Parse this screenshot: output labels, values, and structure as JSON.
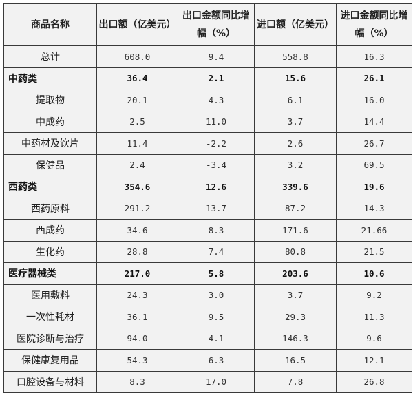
{
  "headers": [
    "商品名称",
    "出口额（亿美元）",
    "出口金额同比增幅（%）",
    "进口额（亿美元）",
    "进口金额同比增幅（%）"
  ],
  "rows": [
    {
      "name": "总计",
      "values": [
        "608.0",
        "9.4",
        "558.8",
        "16.3"
      ],
      "category": false
    },
    {
      "name": "中药类",
      "values": [
        "36.4",
        "2.1",
        "15.6",
        "26.1"
      ],
      "category": true
    },
    {
      "name": "提取物",
      "values": [
        "20.1",
        "4.3",
        "6.1",
        "16.0"
      ],
      "category": false
    },
    {
      "name": "中成药",
      "values": [
        "2.5",
        "11.0",
        "3.7",
        "14.4"
      ],
      "category": false
    },
    {
      "name": "中药材及饮片",
      "values": [
        "11.4",
        "-2.2",
        "2.6",
        "26.7"
      ],
      "category": false
    },
    {
      "name": "保健品",
      "values": [
        "2.4",
        "-3.4",
        "3.2",
        "69.5"
      ],
      "category": false
    },
    {
      "name": "西药类",
      "values": [
        "354.6",
        "12.6",
        "339.6",
        "19.6"
      ],
      "category": true
    },
    {
      "name": "西药原料",
      "values": [
        "291.2",
        "13.7",
        "87.2",
        "14.3"
      ],
      "category": false
    },
    {
      "name": "西成药",
      "values": [
        "34.6",
        "8.3",
        "171.6",
        "21.66"
      ],
      "category": false
    },
    {
      "name": "生化药",
      "values": [
        "28.8",
        "7.4",
        "80.8",
        "21.5"
      ],
      "category": false
    },
    {
      "name": "医疗器械类",
      "values": [
        "217.0",
        "5.8",
        "203.6",
        "10.6"
      ],
      "category": true
    },
    {
      "name": "医用敷料",
      "values": [
        "24.3",
        "3.0",
        "3.7",
        "9.2"
      ],
      "category": false
    },
    {
      "name": "一次性耗材",
      "values": [
        "36.1",
        "9.5",
        "29.3",
        "11.3"
      ],
      "category": false
    },
    {
      "name": "医院诊断与治疗",
      "values": [
        "94.0",
        "4.1",
        "146.3",
        "9.6"
      ],
      "category": false
    },
    {
      "name": "保健康复用品",
      "values": [
        "54.3",
        "6.3",
        "16.5",
        "12.1"
      ],
      "category": false
    },
    {
      "name": "口腔设备与材料",
      "values": [
        "8.3",
        "17.0",
        "7.8",
        "26.8"
      ],
      "category": false
    }
  ]
}
